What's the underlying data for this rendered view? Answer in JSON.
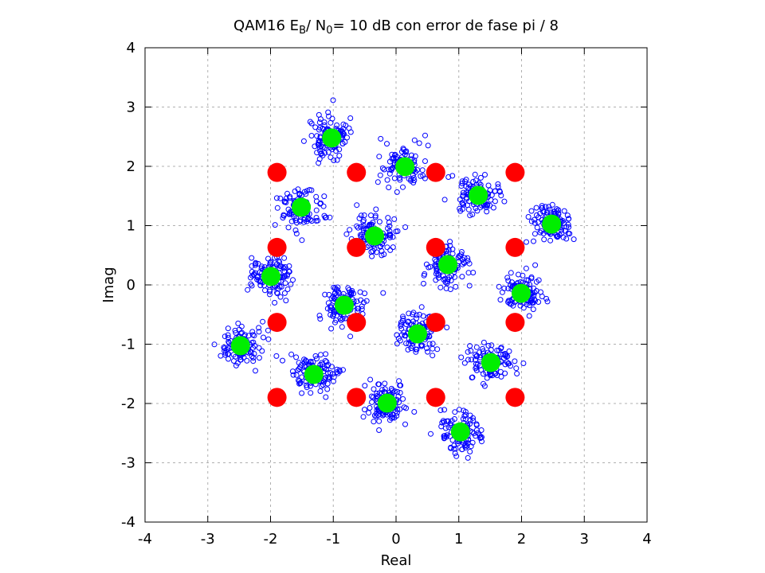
{
  "chart_data": {
    "type": "scatter",
    "title": "QAM16 E",
    "title_sub_b": "B",
    "title_mid": "/ N",
    "title_sub_0": "0",
    "title_end": "= 10 dB con error de fase pi / 8",
    "xlabel": "Real",
    "ylabel": "Imag",
    "xlim": [
      -4,
      4
    ],
    "ylim": [
      -4,
      4
    ],
    "xticks": [
      -4,
      -3,
      -2,
      -1,
      0,
      1,
      2,
      3,
      4
    ],
    "yticks": [
      -4,
      -3,
      -2,
      -1,
      0,
      1,
      2,
      3,
      4
    ],
    "grid": true,
    "legend": "none",
    "noise_std": 0.17,
    "samples_per_symbol": 110,
    "series": [
      {
        "role": "ideal",
        "color": "#ff0000",
        "x": [
          -1.897,
          -0.632,
          0.632,
          1.897,
          -1.897,
          -0.632,
          0.632,
          1.897,
          -1.897,
          -0.632,
          0.632,
          1.897,
          -1.897,
          -0.632,
          0.632,
          1.897
        ],
        "y": [
          1.897,
          1.897,
          1.897,
          1.897,
          0.632,
          0.632,
          0.632,
          0.632,
          -0.632,
          -0.632,
          -0.632,
          -0.632,
          -1.897,
          -1.897,
          -1.897,
          -1.897
        ]
      },
      {
        "role": "phase-rotated",
        "color": "#00ee00",
        "x": [
          -1.026,
          0.142,
          1.31,
          2.479,
          -1.51,
          -0.342,
          0.826,
          1.994,
          -1.994,
          -0.826,
          0.342,
          1.51,
          -2.479,
          -1.31,
          -0.142,
          1.026
        ],
        "y": [
          2.479,
          1.994,
          1.51,
          1.026,
          1.31,
          0.826,
          0.342,
          -0.142,
          0.142,
          -0.342,
          -0.826,
          -1.31,
          -1.026,
          -1.51,
          -1.994,
          -2.479
        ]
      },
      {
        "role": "received",
        "color": "#0000ff",
        "marker": "circle-open"
      }
    ]
  }
}
